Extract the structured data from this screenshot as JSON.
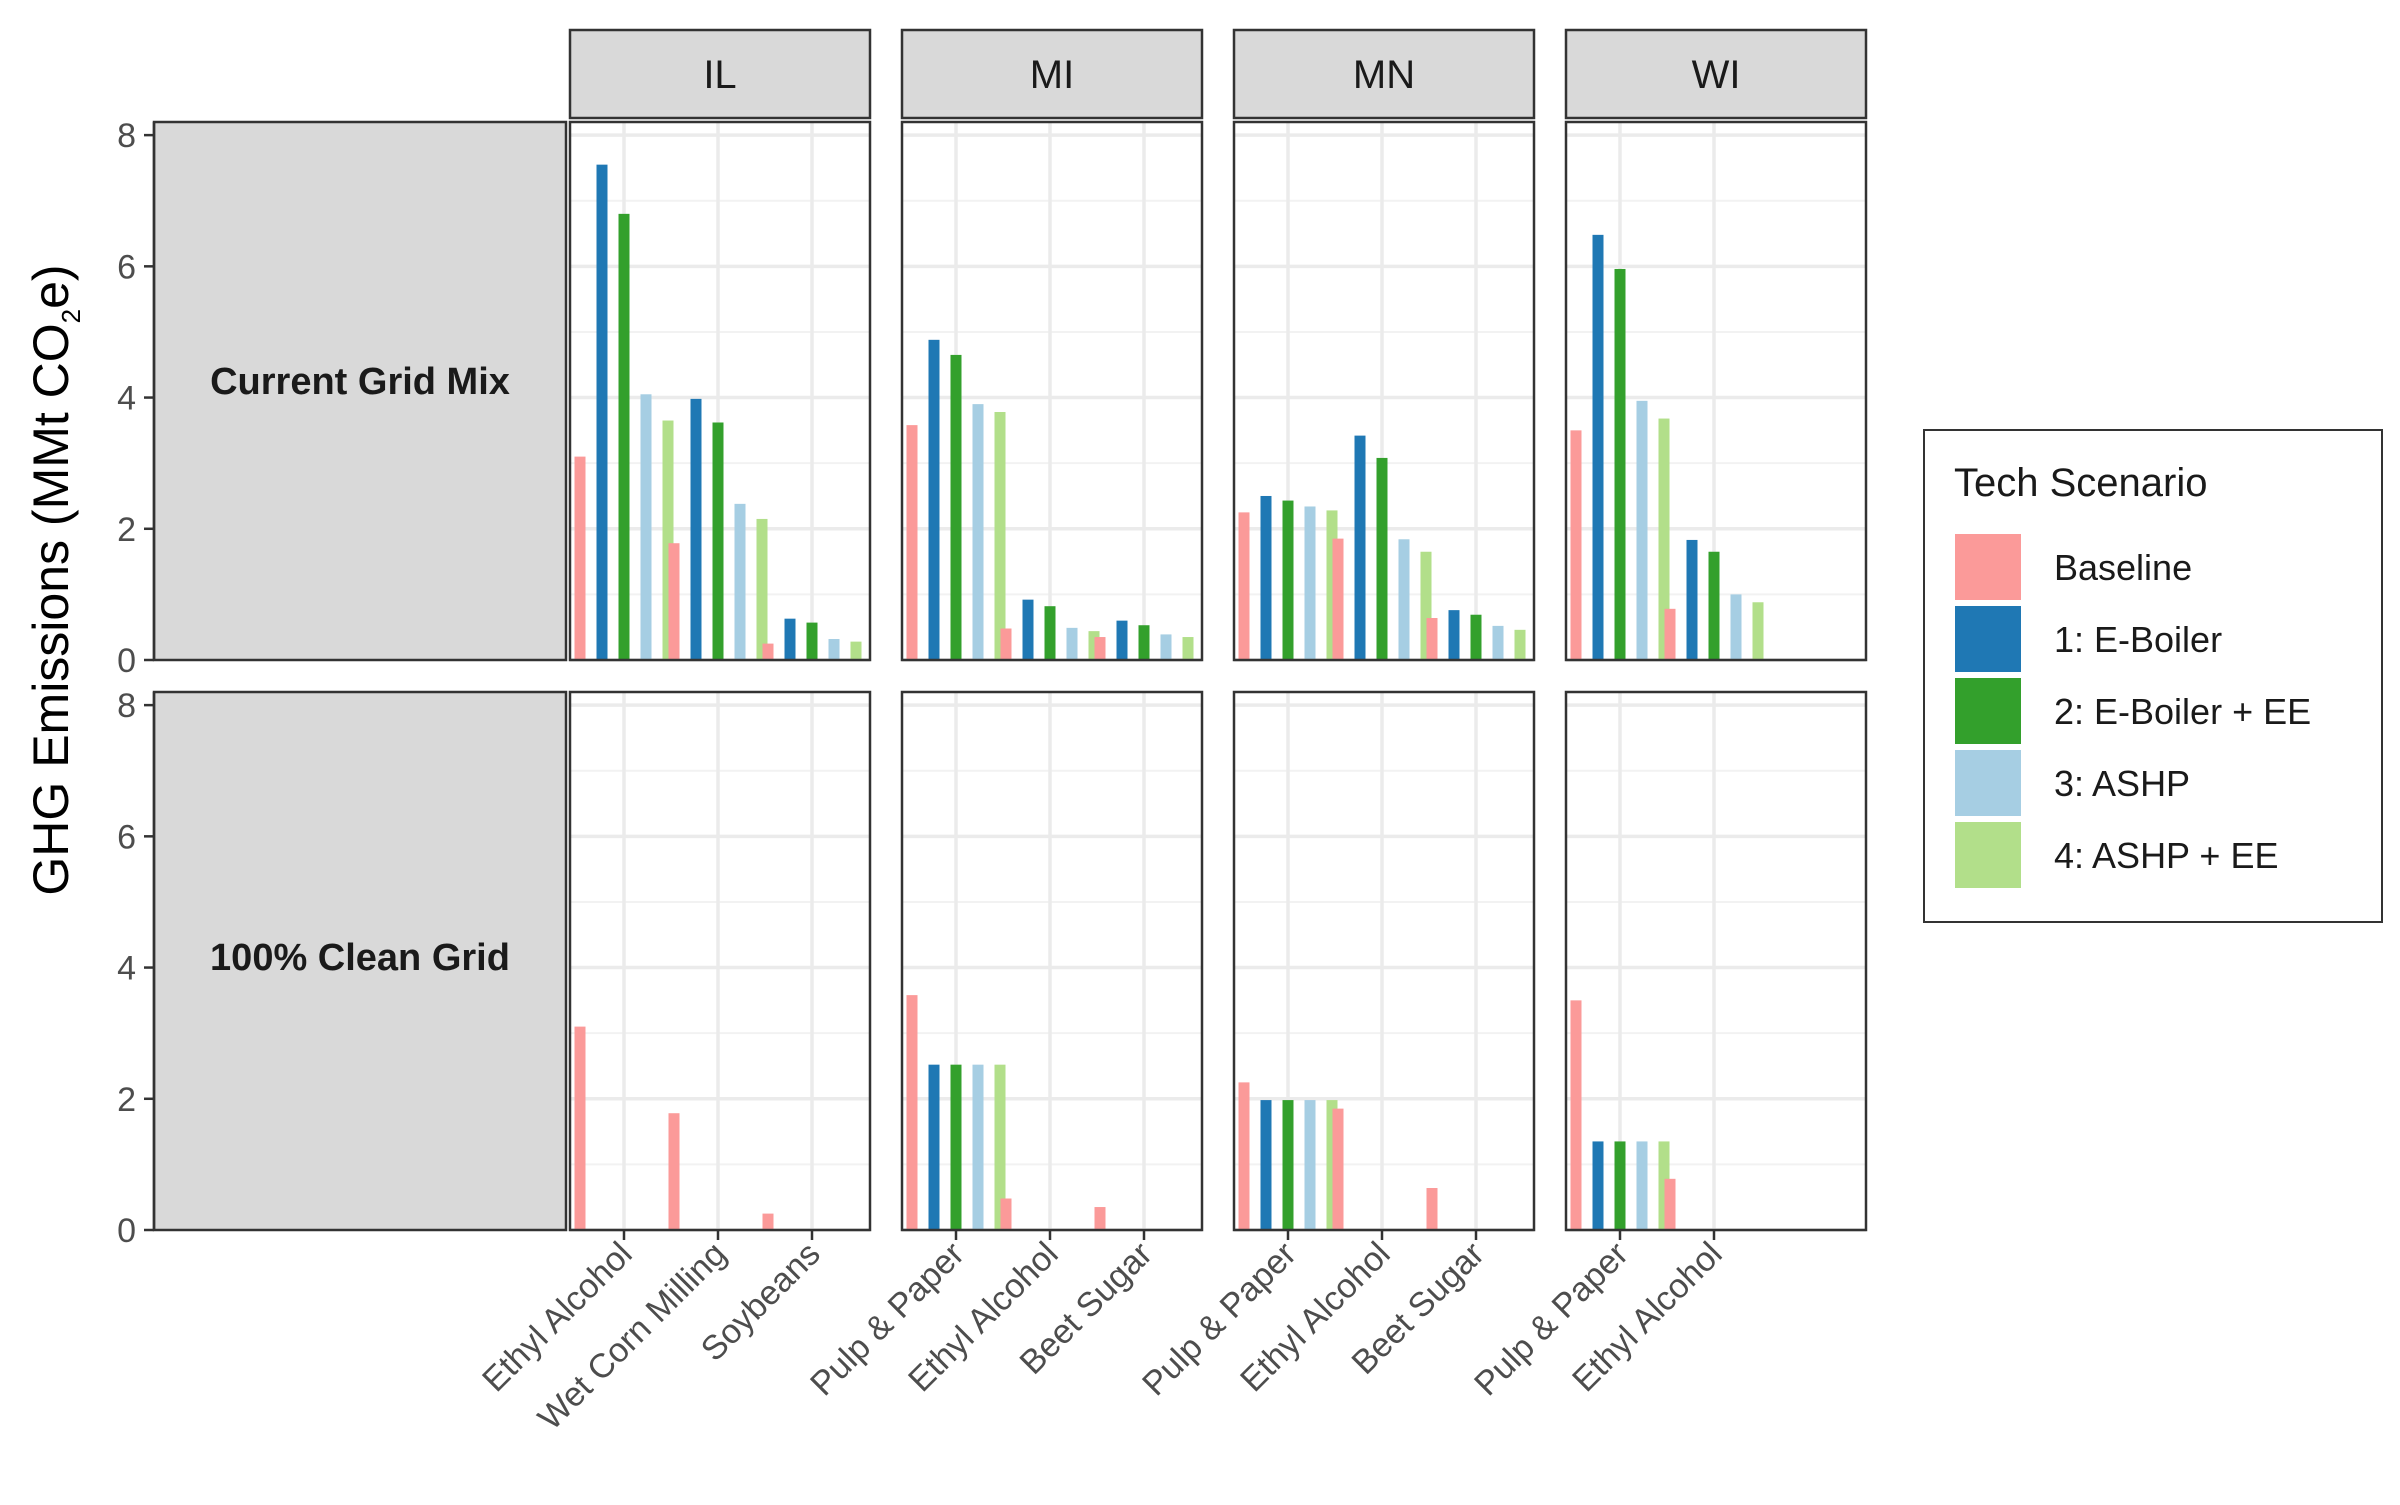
{
  "chart_data": {
    "type": "bar",
    "ylabel": {
      "prefix": "GHG Emissions (MMt CO",
      "sub": "2",
      "suffix": "e)"
    },
    "ylim": [
      0,
      8.2
    ],
    "yticks": [
      0,
      2,
      4,
      6,
      8
    ],
    "grid": true,
    "legend": {
      "title": "Tech Scenario",
      "placement": "right",
      "entries": [
        "Baseline",
        "1: E-Boiler",
        "2: E-Boiler + EE",
        "3: ASHP",
        "4: ASHP + EE"
      ]
    },
    "colors": [
      "#fb9a99",
      "#1f78b4",
      "#33a02c",
      "#a6cee3",
      "#b2df8a"
    ],
    "columns": [
      "IL",
      "MI",
      "MN",
      "WI"
    ],
    "rows": [
      "Current Grid Mix",
      "100% Clean Grid"
    ],
    "categories": {
      "IL": [
        "Ethyl Alcohol",
        "Wet Corn Milling",
        "Soybeans"
      ],
      "MI": [
        "Pulp & Paper",
        "Ethyl Alcohol",
        "Beet Sugar"
      ],
      "MN": [
        "Pulp & Paper",
        "Ethyl Alcohol",
        "Beet Sugar"
      ],
      "WI": [
        "Pulp & Paper",
        "Ethyl Alcohol"
      ]
    },
    "values": {
      "Current Grid Mix": {
        "IL": [
          [
            3.1,
            7.55,
            6.8,
            4.05,
            3.65
          ],
          [
            1.78,
            3.98,
            3.62,
            2.38,
            2.15
          ],
          [
            0.25,
            0.63,
            0.57,
            0.32,
            0.28
          ]
        ],
        "MI": [
          [
            3.58,
            4.88,
            4.65,
            3.9,
            3.78
          ],
          [
            0.48,
            0.92,
            0.82,
            0.49,
            0.44
          ],
          [
            0.35,
            0.6,
            0.53,
            0.39,
            0.35
          ]
        ],
        "MN": [
          [
            2.25,
            2.5,
            2.43,
            2.34,
            2.28
          ],
          [
            1.85,
            3.42,
            3.08,
            1.84,
            1.65
          ],
          [
            0.64,
            0.76,
            0.69,
            0.52,
            0.46
          ]
        ],
        "WI": [
          [
            3.5,
            6.48,
            5.96,
            3.95,
            3.68
          ],
          [
            0.78,
            1.83,
            1.65,
            1.0,
            0.88
          ]
        ]
      },
      "100% Clean Grid": {
        "IL": [
          [
            3.1,
            0,
            0,
            0,
            0
          ],
          [
            1.78,
            0,
            0,
            0,
            0
          ],
          [
            0.25,
            0,
            0,
            0,
            0
          ]
        ],
        "MI": [
          [
            3.58,
            2.52,
            2.52,
            2.52,
            2.52
          ],
          [
            0.48,
            0,
            0,
            0,
            0
          ],
          [
            0.35,
            0,
            0,
            0,
            0
          ]
        ],
        "MN": [
          [
            2.25,
            1.98,
            1.98,
            1.98,
            1.98
          ],
          [
            1.85,
            0,
            0,
            0,
            0
          ],
          [
            0.64,
            0,
            0,
            0,
            0
          ]
        ],
        "WI": [
          [
            3.5,
            1.35,
            1.35,
            1.35,
            1.35
          ],
          [
            0.78,
            0,
            0,
            0,
            0
          ]
        ]
      }
    }
  }
}
